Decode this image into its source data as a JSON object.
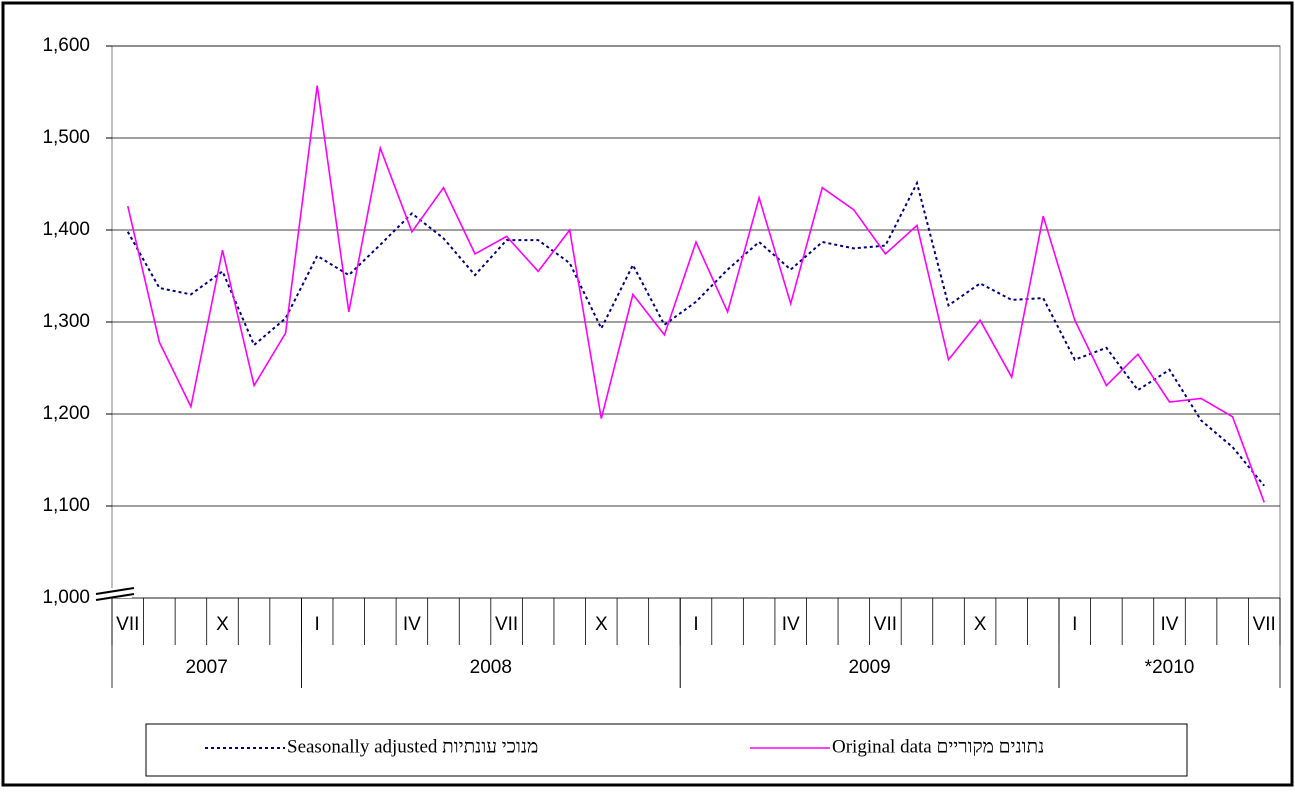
{
  "chart_data": {
    "type": "line",
    "categories": [
      "VII",
      null,
      null,
      "X",
      null,
      null,
      "I",
      null,
      null,
      "IV",
      null,
      null,
      "VII",
      null,
      null,
      "X",
      null,
      null,
      "I",
      null,
      null,
      "IV",
      null,
      null,
      "VII",
      null,
      null,
      "X",
      null,
      null,
      "I",
      null,
      null,
      "IV",
      null,
      null,
      "VII"
    ],
    "groups": [
      {
        "label": "2007",
        "count": 6
      },
      {
        "label": "2008",
        "count": 12
      },
      {
        "label": "2009",
        "count": 12
      },
      {
        "label": "*2010",
        "count": 7
      }
    ],
    "series": [
      {
        "name": "Seasonally adjusted מנוכי עונתיות",
        "color": "#000080",
        "dash": true,
        "values": [
          1398,
          1337,
          1330,
          1355,
          1275,
          1304,
          1372,
          1351,
          1384,
          1418,
          1391,
          1351,
          1389,
          1389,
          1364,
          1293,
          1362,
          1297,
          1322,
          1357,
          1387,
          1357,
          1387,
          1380,
          1383,
          1451,
          1318,
          1342,
          1324,
          1326,
          1259,
          1272,
          1226,
          1248,
          1193,
          1164,
          1122
        ]
      },
      {
        "name": "Original data נתונים מקוריים",
        "color": "#ff00ff",
        "dash": false,
        "values": [
          1426,
          1278,
          1208,
          1378,
          1231,
          1288,
          1557,
          1311,
          1489,
          1398,
          1446,
          1374,
          1393,
          1355,
          1400,
          1195,
          1330,
          1286,
          1387,
          1311,
          1435,
          1320,
          1446,
          1422,
          1374,
          1405,
          1259,
          1302,
          1240,
          1415,
          1302,
          1231,
          1265,
          1213,
          1217,
          1197,
          1104
        ]
      }
    ],
    "ylim": [
      1000,
      1600
    ],
    "yticks": [
      {
        "value": 1000,
        "label": "1,000"
      },
      {
        "value": 1100,
        "label": "1,100"
      },
      {
        "value": 1200,
        "label": "1,200"
      },
      {
        "value": 1300,
        "label": "1,300"
      },
      {
        "value": 1400,
        "label": "1,400"
      },
      {
        "value": 1500,
        "label": "1,500"
      },
      {
        "value": 1600,
        "label": "1,600"
      }
    ],
    "grid": true
  }
}
